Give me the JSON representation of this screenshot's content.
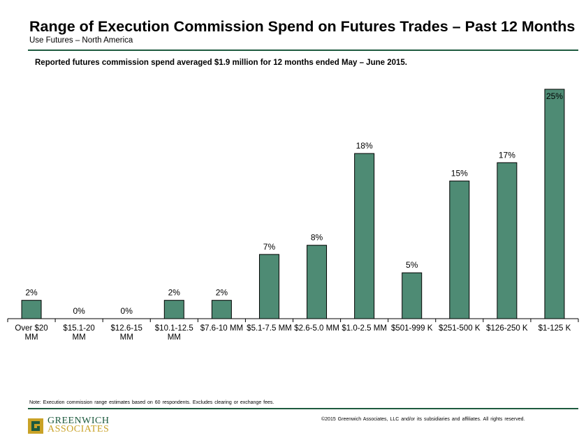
{
  "header": {
    "title": "Range of Execution Commission Spend on Futures Trades – Past 12 Months",
    "subtitle": "Use Futures – North America",
    "headline": "Reported futures commission spend averaged $1.9 million for 12 months ended May – June 2015."
  },
  "colors": {
    "bar": "#4e8b74",
    "bar_outline": "#000000",
    "rule": "#1d5a3e",
    "logo_green": "#1d5a3e",
    "logo_gold": "#c9a227"
  },
  "chart_data": {
    "type": "bar",
    "categories": [
      [
        "Over $20",
        "MM"
      ],
      [
        "$15.1-20",
        "MM"
      ],
      [
        "$12.6-15",
        "MM"
      ],
      [
        "$10.1-12.5",
        "MM"
      ],
      [
        "$7.6-10 MM"
      ],
      [
        "$5.1-7.5 MM"
      ],
      [
        "$2.6-5.0 MM"
      ],
      [
        "$1.0-2.5 MM"
      ],
      [
        "$501-999 K"
      ],
      [
        "$251-500 K"
      ],
      [
        "$126-250 K"
      ],
      [
        "$1-125 K"
      ]
    ],
    "values": [
      2,
      0,
      0,
      2,
      2,
      7,
      8,
      18,
      5,
      15,
      17,
      25
    ],
    "data_labels": [
      "2%",
      "0%",
      "0%",
      "2%",
      "2%",
      "7%",
      "8%",
      "18%",
      "5%",
      "15%",
      "17%",
      "25%"
    ],
    "ylim": [
      0,
      25
    ],
    "grid": false,
    "legend": "none"
  },
  "footer": {
    "note": "Note: Execution commission range estimates based on 60 respondents. Excludes clearing or exchange fees.",
    "copyright": "©2015 Greenwich Associates, LLC and/or its subsidiaries and affiliates. All rights reserved.",
    "logo_line1": "GREENWICH",
    "logo_line2": "ASSOCIATES"
  }
}
